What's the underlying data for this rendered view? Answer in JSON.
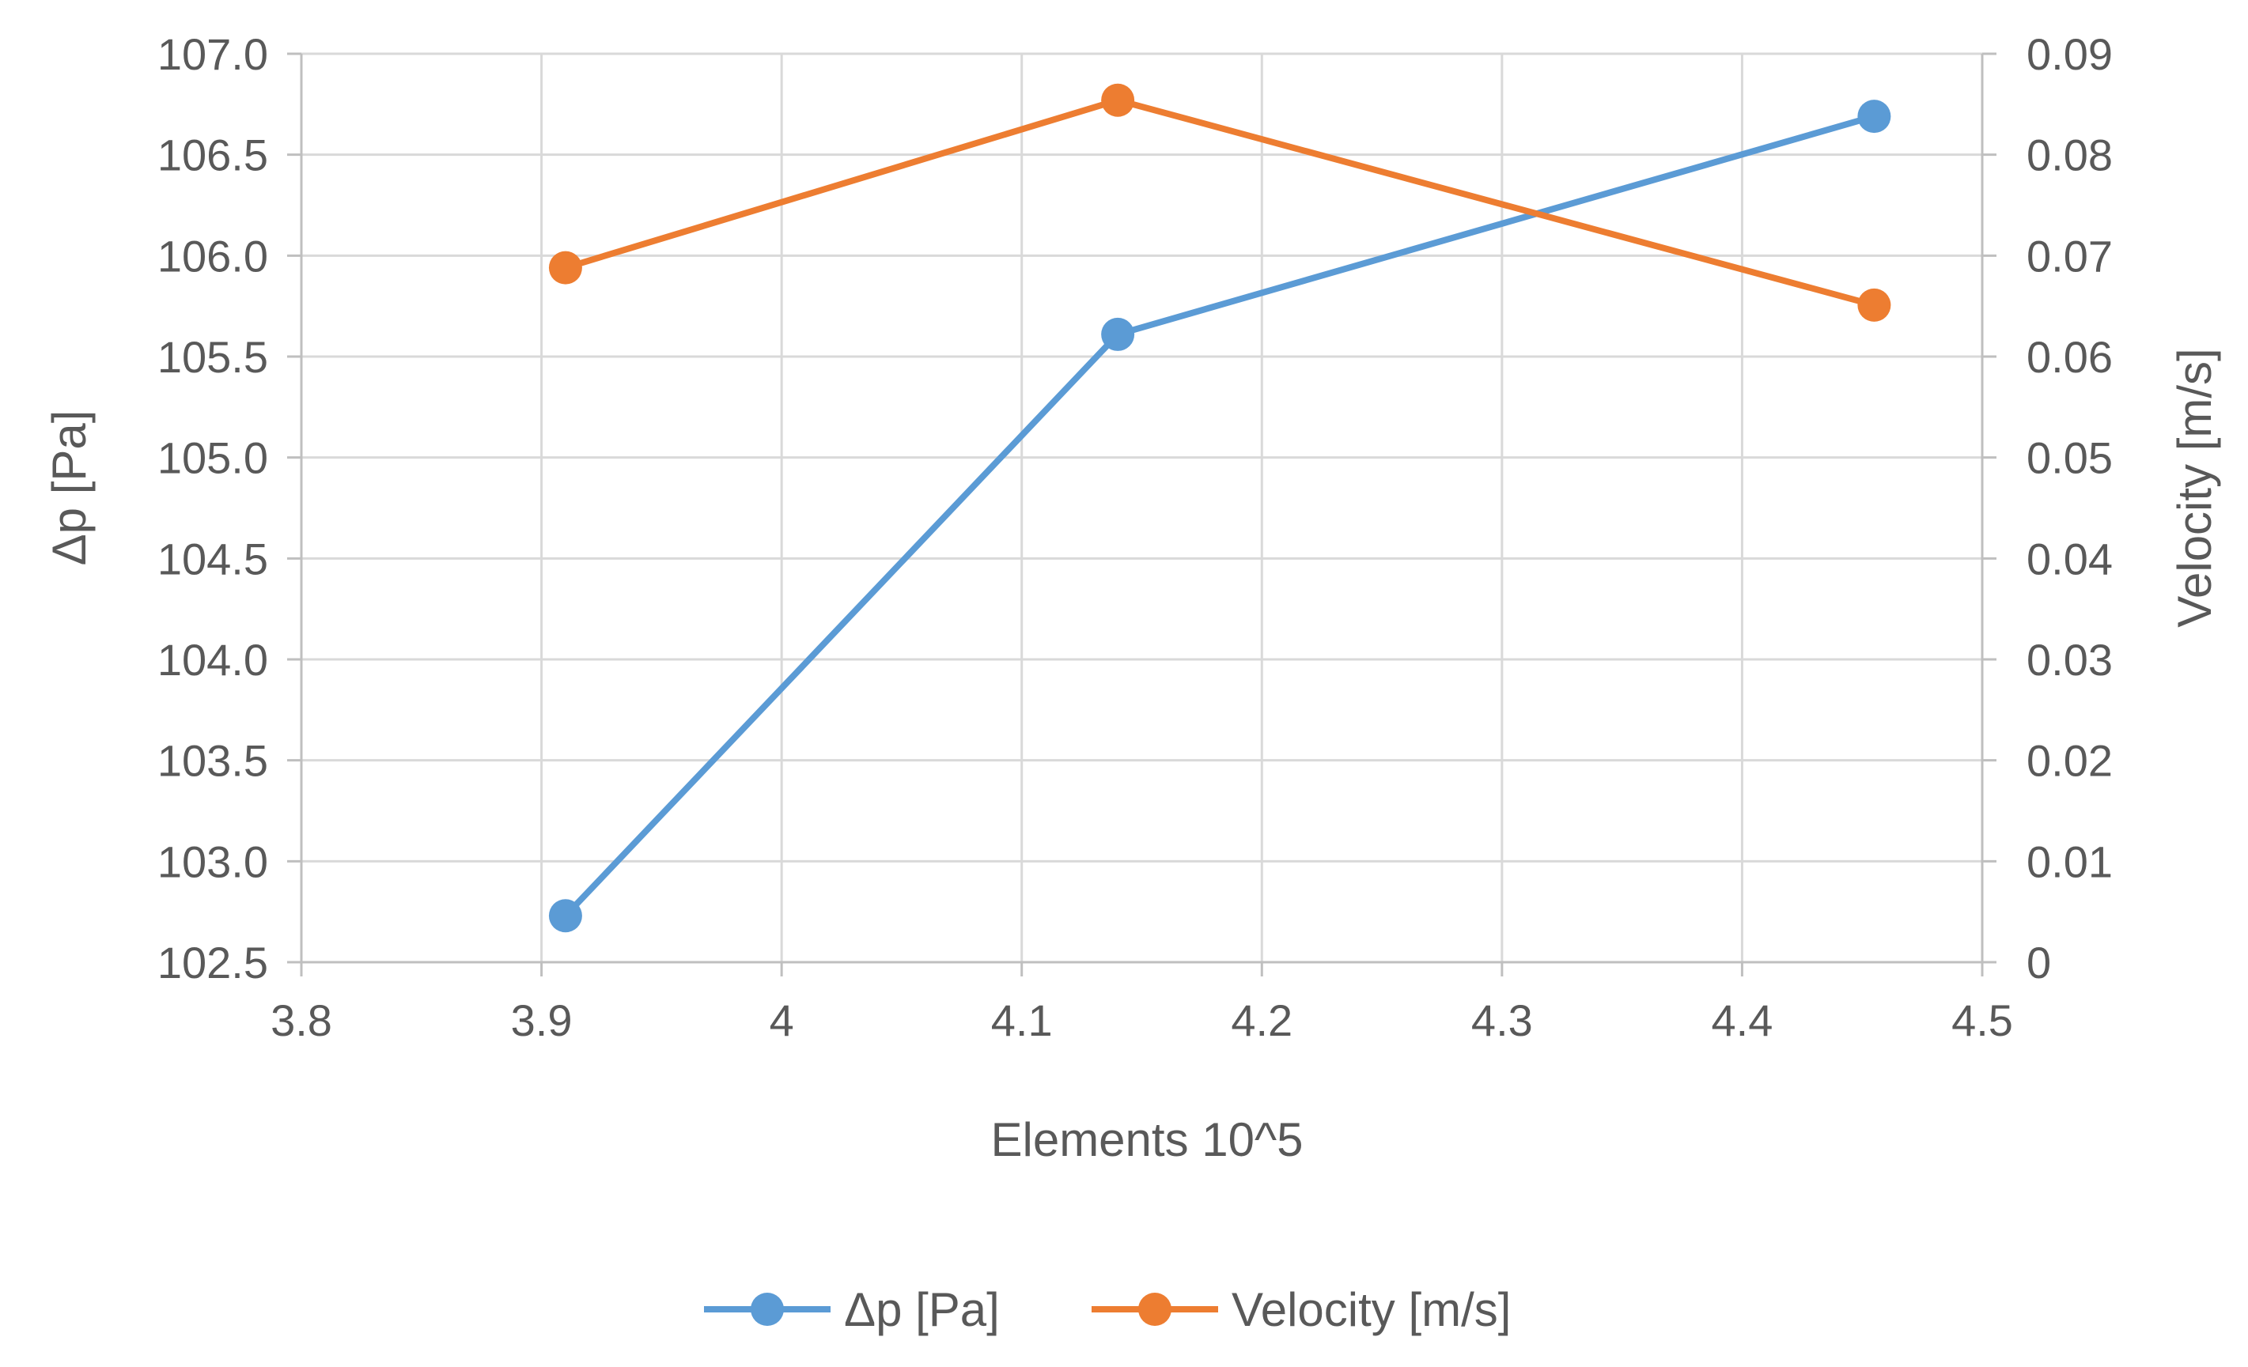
{
  "chart_data": {
    "type": "line",
    "title": "",
    "xlabel": "Elements 10^5",
    "ylabel_left": "Δp [Pa]",
    "ylabel_right": "Velocity [m/s]",
    "xlim": [
      3.8,
      4.5
    ],
    "ylim_left": [
      102.5,
      107.0
    ],
    "ylim_right": [
      0,
      0.09
    ],
    "x_ticks": [
      "3.8",
      "3.9",
      "4",
      "4.1",
      "4.2",
      "4.3",
      "4.4",
      "4.5"
    ],
    "x_tick_values": [
      3.8,
      3.9,
      4.0,
      4.1,
      4.2,
      4.3,
      4.4,
      4.5
    ],
    "y_left_ticks": [
      "102.5",
      "103.0",
      "103.5",
      "104.0",
      "104.5",
      "105.0",
      "105.5",
      "106.0",
      "106.5",
      "107.0"
    ],
    "y_left_tick_values": [
      102.5,
      103.0,
      103.5,
      104.0,
      104.5,
      105.0,
      105.5,
      106.0,
      106.5,
      107.0
    ],
    "y_right_ticks": [
      "0",
      "0.01",
      "0.02",
      "0.03",
      "0.04",
      "0.05",
      "0.06",
      "0.07",
      "0.08",
      "0.09"
    ],
    "y_right_tick_values": [
      0,
      0.01,
      0.02,
      0.03,
      0.04,
      0.05,
      0.06,
      0.07,
      0.08,
      0.09
    ],
    "grid": true,
    "legend_position": "bottom",
    "series": [
      {
        "name": "Δp [Pa]",
        "axis": "left",
        "color": "#5B9BD5",
        "x": [
          3.91,
          4.14,
          4.455
        ],
        "values": [
          102.73,
          105.61,
          106.69
        ]
      },
      {
        "name": "Velocity [m/s]",
        "axis": "right",
        "color": "#ED7D31",
        "x": [
          3.91,
          4.14,
          4.455
        ],
        "values": [
          0.0688,
          0.0854,
          0.0651
        ]
      }
    ]
  }
}
